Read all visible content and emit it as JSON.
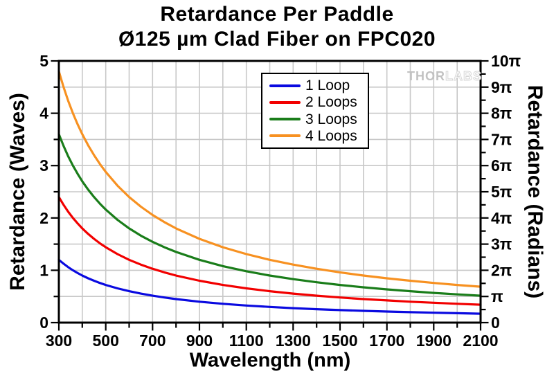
{
  "title": {
    "line1": "Retardance Per Paddle",
    "line2": "Ø125 µm Clad Fiber on FPC020"
  },
  "watermark": {
    "part1": "THOR",
    "part2": "LABS"
  },
  "chart_data": {
    "type": "line",
    "title": "Retardance Per Paddle",
    "subtitle": "Ø125 µm Clad Fiber on FPC020",
    "xlabel": "Wavelength (nm)",
    "ylabel_left": "Retardance (Waves)",
    "ylabel_right": "Retardance (Radians)",
    "xlim": [
      300,
      2100
    ],
    "ylim_left": [
      0,
      5
    ],
    "ylim_right_radians_pi": [
      0,
      10
    ],
    "grid": {
      "on": true,
      "color": "#c8c8c8",
      "x_step_nm": 100,
      "y_step_waves": 0.5
    },
    "legend_position": "top-center",
    "x_ticks": [
      {
        "nm": 300,
        "label": "300"
      },
      {
        "nm": 500,
        "label": "500"
      },
      {
        "nm": 700,
        "label": "700"
      },
      {
        "nm": 900,
        "label": "900"
      },
      {
        "nm": 1100,
        "label": "1100"
      },
      {
        "nm": 1300,
        "label": "1300"
      },
      {
        "nm": 1500,
        "label": "1500"
      },
      {
        "nm": 1700,
        "label": "1700"
      },
      {
        "nm": 1900,
        "label": "1900"
      },
      {
        "nm": 2100,
        "label": "2100"
      }
    ],
    "x_minor": [
      400,
      600,
      800,
      1000,
      1200,
      1400,
      1600,
      1800,
      2000
    ],
    "y_left_ticks": [
      {
        "w": 0,
        "label": "0"
      },
      {
        "w": 1,
        "label": "1"
      },
      {
        "w": 2,
        "label": "2"
      },
      {
        "w": 3,
        "label": "3"
      },
      {
        "w": 4,
        "label": "4"
      },
      {
        "w": 5,
        "label": "5"
      }
    ],
    "y_left_minor": [
      0.5,
      1.5,
      2.5,
      3.5,
      4.5
    ],
    "y_right_ticks": [
      {
        "w": 0.0,
        "label": "0"
      },
      {
        "w": 0.5,
        "label": "π"
      },
      {
        "w": 1.0,
        "label": "2π"
      },
      {
        "w": 1.5,
        "label": "3π"
      },
      {
        "w": 2.0,
        "label": "4π"
      },
      {
        "w": 2.5,
        "label": "5π"
      },
      {
        "w": 3.0,
        "label": "6π"
      },
      {
        "w": 3.5,
        "label": "7π"
      },
      {
        "w": 4.0,
        "label": "8π"
      },
      {
        "w": 4.5,
        "label": "9π"
      },
      {
        "w": 5.0,
        "label": "10π"
      }
    ],
    "y_right_minor_waves": [
      0.25,
      0.75,
      1.25,
      1.75,
      2.25,
      2.75,
      3.25,
      3.75,
      4.25,
      4.75
    ],
    "x": [
      300,
      320,
      340,
      360,
      380,
      400,
      425,
      450,
      475,
      500,
      550,
      600,
      650,
      700,
      750,
      800,
      900,
      1000,
      1100,
      1200,
      1300,
      1400,
      1500,
      1600,
      1700,
      1800,
      1900,
      2000,
      2100
    ],
    "series": [
      {
        "name": "1 Loop",
        "color": "#0a0ae0",
        "values": [
          1.2,
          1.125,
          1.059,
          1.0,
          0.947,
          0.9,
          0.847,
          0.8,
          0.758,
          0.72,
          0.655,
          0.6,
          0.554,
          0.514,
          0.48,
          0.45,
          0.4,
          0.36,
          0.327,
          0.3,
          0.277,
          0.257,
          0.24,
          0.225,
          0.212,
          0.2,
          0.189,
          0.18,
          0.171
        ]
      },
      {
        "name": "2 Loops",
        "color": "#f20000",
        "values": [
          2.4,
          2.25,
          2.118,
          2.0,
          1.895,
          1.8,
          1.694,
          1.6,
          1.516,
          1.44,
          1.309,
          1.2,
          1.108,
          1.029,
          0.96,
          0.9,
          0.8,
          0.72,
          0.655,
          0.6,
          0.554,
          0.514,
          0.48,
          0.45,
          0.424,
          0.4,
          0.379,
          0.36,
          0.343
        ]
      },
      {
        "name": "3 Loops",
        "color": "#1a7d1a",
        "values": [
          3.6,
          3.375,
          3.176,
          3.0,
          2.842,
          2.7,
          2.541,
          2.4,
          2.274,
          2.16,
          1.964,
          1.8,
          1.662,
          1.543,
          1.44,
          1.35,
          1.2,
          1.08,
          0.982,
          0.9,
          0.831,
          0.771,
          0.72,
          0.675,
          0.635,
          0.6,
          0.568,
          0.54,
          0.514
        ]
      },
      {
        "name": "4 Loops",
        "color": "#f79121",
        "values": [
          4.8,
          4.5,
          4.235,
          4.0,
          3.789,
          3.6,
          3.388,
          3.2,
          3.032,
          2.88,
          2.618,
          2.4,
          2.215,
          2.057,
          1.92,
          1.8,
          1.6,
          1.44,
          1.309,
          1.2,
          1.108,
          1.029,
          0.96,
          0.9,
          0.847,
          0.8,
          0.758,
          0.72,
          0.686
        ]
      }
    ]
  }
}
